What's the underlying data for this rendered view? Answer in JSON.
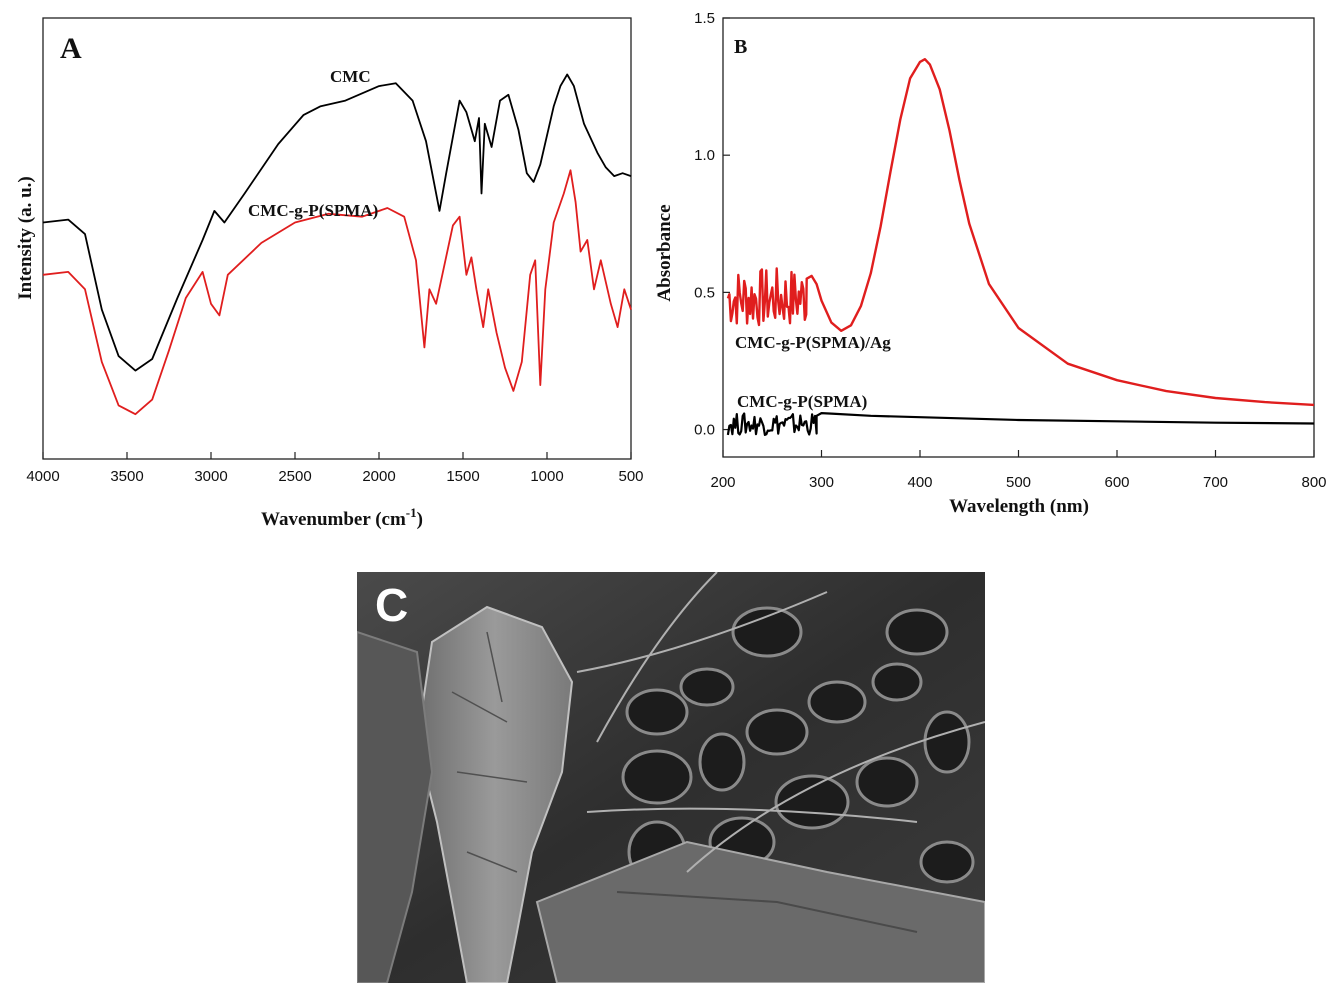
{
  "chart_data": [
    {
      "panel": "A",
      "type": "line",
      "xlabel": "Wavenumber (cm",
      "xlabel_sup": "-1",
      "xlabel_tail": ")",
      "ylabel": "Intensity (a. u.)",
      "xlim": [
        4000,
        500
      ],
      "x_reversed": true,
      "y_ticks_shown": false,
      "xticks": [
        "4000",
        "3500",
        "3000",
        "2500",
        "2000",
        "1500",
        "1000",
        "500"
      ],
      "series": [
        {
          "name": "CMC",
          "color": "#000000",
          "points": [
            [
              4000,
              0.78
            ],
            [
              3850,
              0.79
            ],
            [
              3750,
              0.74
            ],
            [
              3650,
              0.48
            ],
            [
              3550,
              0.32
            ],
            [
              3450,
              0.27
            ],
            [
              3350,
              0.31
            ],
            [
              3200,
              0.52
            ],
            [
              3050,
              0.72
            ],
            [
              2980,
              0.82
            ],
            [
              2920,
              0.78
            ],
            [
              2800,
              0.88
            ],
            [
              2600,
              1.05
            ],
            [
              2450,
              1.15
            ],
            [
              2350,
              1.18
            ],
            [
              2200,
              1.2
            ],
            [
              2000,
              1.25
            ],
            [
              1900,
              1.26
            ],
            [
              1800,
              1.2
            ],
            [
              1720,
              1.06
            ],
            [
              1640,
              0.82
            ],
            [
              1600,
              0.95
            ],
            [
              1520,
              1.2
            ],
            [
              1480,
              1.16
            ],
            [
              1430,
              1.06
            ],
            [
              1405,
              1.14
            ],
            [
              1390,
              0.88
            ],
            [
              1370,
              1.12
            ],
            [
              1330,
              1.04
            ],
            [
              1280,
              1.2
            ],
            [
              1230,
              1.22
            ],
            [
              1170,
              1.1
            ],
            [
              1120,
              0.95
            ],
            [
              1080,
              0.92
            ],
            [
              1040,
              0.98
            ],
            [
              960,
              1.18
            ],
            [
              920,
              1.25
            ],
            [
              880,
              1.29
            ],
            [
              840,
              1.25
            ],
            [
              780,
              1.12
            ],
            [
              700,
              1.02
            ],
            [
              650,
              0.97
            ],
            [
              600,
              0.94
            ],
            [
              550,
              0.95
            ],
            [
              500,
              0.94
            ]
          ]
        },
        {
          "name": "CMC-g-P(SPMA)",
          "color": "#e01e1e",
          "points": [
            [
              4000,
              0.6
            ],
            [
              3850,
              0.61
            ],
            [
              3750,
              0.55
            ],
            [
              3650,
              0.3
            ],
            [
              3550,
              0.15
            ],
            [
              3450,
              0.12
            ],
            [
              3350,
              0.17
            ],
            [
              3250,
              0.34
            ],
            [
              3150,
              0.52
            ],
            [
              3050,
              0.61
            ],
            [
              3000,
              0.5
            ],
            [
              2950,
              0.46
            ],
            [
              2900,
              0.6
            ],
            [
              2700,
              0.71
            ],
            [
              2500,
              0.78
            ],
            [
              2300,
              0.81
            ],
            [
              2100,
              0.8
            ],
            [
              1950,
              0.83
            ],
            [
              1850,
              0.8
            ],
            [
              1780,
              0.65
            ],
            [
              1730,
              0.35
            ],
            [
              1700,
              0.55
            ],
            [
              1660,
              0.5
            ],
            [
              1560,
              0.77
            ],
            [
              1520,
              0.8
            ],
            [
              1480,
              0.6
            ],
            [
              1450,
              0.66
            ],
            [
              1420,
              0.55
            ],
            [
              1380,
              0.42
            ],
            [
              1350,
              0.55
            ],
            [
              1300,
              0.4
            ],
            [
              1250,
              0.28
            ],
            [
              1200,
              0.2
            ],
            [
              1150,
              0.3
            ],
            [
              1100,
              0.6
            ],
            [
              1070,
              0.65
            ],
            [
              1040,
              0.22
            ],
            [
              1010,
              0.55
            ],
            [
              960,
              0.78
            ],
            [
              900,
              0.88
            ],
            [
              860,
              0.96
            ],
            [
              830,
              0.85
            ],
            [
              800,
              0.68
            ],
            [
              760,
              0.72
            ],
            [
              720,
              0.55
            ],
            [
              680,
              0.65
            ],
            [
              620,
              0.5
            ],
            [
              580,
              0.42
            ],
            [
              540,
              0.55
            ],
            [
              500,
              0.48
            ]
          ]
        }
      ],
      "annotations": [
        "CMC",
        "CMC-g-P(SPMA)"
      ]
    },
    {
      "panel": "B",
      "type": "line",
      "xlabel": "Wavelength (nm)",
      "ylabel": "Absorbance",
      "xlim": [
        200,
        800
      ],
      "ylim": [
        -0.1,
        1.5
      ],
      "xticks": [
        "200",
        "300",
        "400",
        "500",
        "600",
        "700",
        "800"
      ],
      "yticks": [
        "0.0",
        "0.5",
        "1.0",
        "1.5"
      ],
      "series": [
        {
          "name": "CMC-g-P(SPMA)/Ag",
          "color": "#e01e1e",
          "noisy_region": [
            205,
            285
          ],
          "noisy_center": 0.48,
          "noisy_amplitude": 0.11,
          "points": [
            [
              285,
              0.55
            ],
            [
              290,
              0.56
            ],
            [
              295,
              0.53
            ],
            [
              300,
              0.47
            ],
            [
              310,
              0.39
            ],
            [
              320,
              0.36
            ],
            [
              330,
              0.38
            ],
            [
              340,
              0.45
            ],
            [
              350,
              0.57
            ],
            [
              360,
              0.74
            ],
            [
              370,
              0.94
            ],
            [
              380,
              1.13
            ],
            [
              390,
              1.28
            ],
            [
              400,
              1.34
            ],
            [
              405,
              1.35
            ],
            [
              410,
              1.33
            ],
            [
              420,
              1.24
            ],
            [
              430,
              1.09
            ],
            [
              440,
              0.91
            ],
            [
              450,
              0.75
            ],
            [
              470,
              0.53
            ],
            [
              500,
              0.37
            ],
            [
              550,
              0.24
            ],
            [
              600,
              0.18
            ],
            [
              650,
              0.14
            ],
            [
              700,
              0.115
            ],
            [
              750,
              0.1
            ],
            [
              800,
              0.09
            ]
          ]
        },
        {
          "name": "CMC-g-P(SPMA)",
          "color": "#000000",
          "noisy_region": [
            205,
            295
          ],
          "noisy_center": 0.02,
          "noisy_amplitude": 0.04,
          "points": [
            [
              295,
              0.05
            ],
            [
              300,
              0.06
            ],
            [
              310,
              0.058
            ],
            [
              350,
              0.05
            ],
            [
              400,
              0.045
            ],
            [
              500,
              0.035
            ],
            [
              600,
              0.03
            ],
            [
              700,
              0.025
            ],
            [
              800,
              0.022
            ]
          ]
        }
      ],
      "annotations": [
        "CMC-g-P(SPMA)/Ag",
        "CMC-g-P(SPMA)"
      ]
    }
  ],
  "panels": {
    "a_label": "A",
    "b_label": "B",
    "c_label": "C"
  }
}
